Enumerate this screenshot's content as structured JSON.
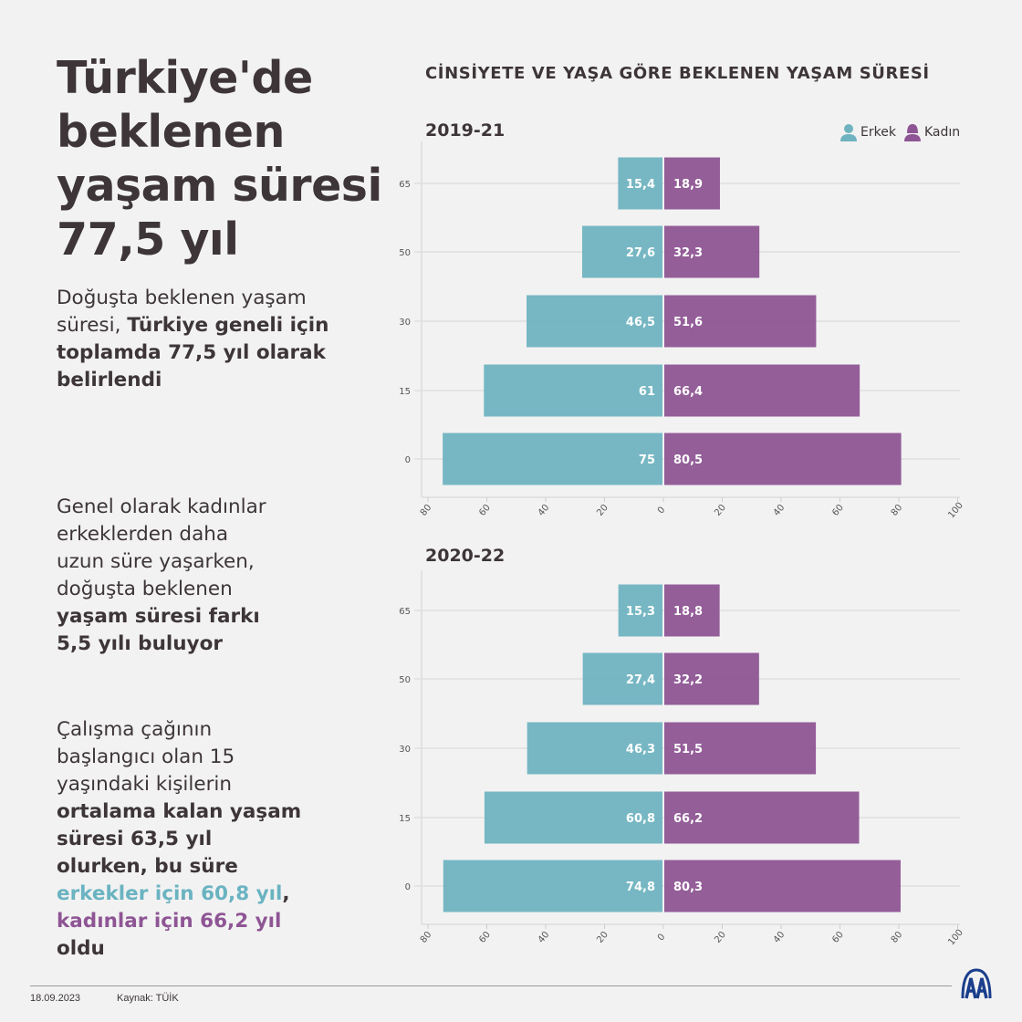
{
  "headline": [
    "Türkiye'de",
    "beklenen",
    "yaşam süresi",
    "77,5 yıl"
  ],
  "paragraphs": [
    [
      {
        "t": "Doğuşta beklenen yaşam süresi, ",
        "s": ""
      },
      {
        "t": "Türkiye geneli için toplamda 77,5 yıl olarak belirlendi",
        "s": "b"
      }
    ],
    [
      {
        "t": "Genel olarak kadınlar erkeklerden daha uzun süre yaşarken, doğuşta beklenen ",
        "s": ""
      },
      {
        "t": "yaşam süresi farkı 5,5 yılı buluyor",
        "s": "b"
      }
    ],
    [
      {
        "t": "Çalışma çağının başlangıcı olan 15 yaşındaki kişilerin ",
        "s": ""
      },
      {
        "t": "ortalama kalan yaşam süresi 63,5 yıl olurken, bu süre ",
        "s": "b"
      },
      {
        "t": "erkekler için 60,8 yıl",
        "s": "teal"
      },
      {
        "t": ", ",
        "s": "b"
      },
      {
        "t": "kadınlar için 66,2 yıl",
        "s": "purple"
      },
      {
        "t": " oldu",
        "s": "b"
      }
    ]
  ],
  "chart_title": "CİNSİYETE VE YAŞA GÖRE BEKLENEN YAŞAM SÜRESİ",
  "legend": {
    "male": "Erkek",
    "female": "Kadın",
    "male_icon": "person-male-icon",
    "female_icon": "person-female-icon"
  },
  "colors": {
    "male": "#6fb3c0",
    "female": "#8e5594",
    "text": "#3d3537"
  },
  "chart_data": [
    {
      "type": "bar",
      "orientation": "horizontal-population-pyramid",
      "title": "2019-21",
      "categories": [
        "65",
        "50",
        "30",
        "15",
        "0"
      ],
      "series": [
        {
          "name": "Erkek",
          "values": [
            15.4,
            27.6,
            46.5,
            61,
            75
          ],
          "labels": [
            "15,4",
            "27,6",
            "46,5",
            "61",
            "75"
          ]
        },
        {
          "name": "Kadın",
          "values": [
            18.9,
            32.3,
            51.6,
            66.4,
            80.5
          ],
          "labels": [
            "18,9",
            "32,3",
            "51,6",
            "66,4",
            "80,5"
          ]
        }
      ],
      "xlim": [
        -80,
        100
      ],
      "xticks": [
        "80",
        "60",
        "40",
        "20",
        "0",
        "20",
        "40",
        "60",
        "80",
        "100"
      ],
      "grid": true
    },
    {
      "type": "bar",
      "orientation": "horizontal-population-pyramid",
      "title": "2020-22",
      "categories": [
        "65",
        "50",
        "30",
        "15",
        "0"
      ],
      "series": [
        {
          "name": "Erkek",
          "values": [
            15.3,
            27.4,
            46.3,
            60.8,
            74.8
          ],
          "labels": [
            "15,3",
            "27,4",
            "46,3",
            "60,8",
            "74,8"
          ]
        },
        {
          "name": "Kadın",
          "values": [
            18.8,
            32.2,
            51.5,
            66.2,
            80.3
          ],
          "labels": [
            "18,8",
            "32,2",
            "51,5",
            "66,2",
            "80,3"
          ]
        }
      ],
      "xlim": [
        -80,
        100
      ],
      "xticks": [
        "80",
        "60",
        "40",
        "20",
        "0",
        "20",
        "40",
        "60",
        "80",
        "100"
      ],
      "grid": true
    }
  ],
  "footer": {
    "date": "18.09.2023",
    "source": "Kaynak: TÜİK",
    "logo": "AA"
  }
}
